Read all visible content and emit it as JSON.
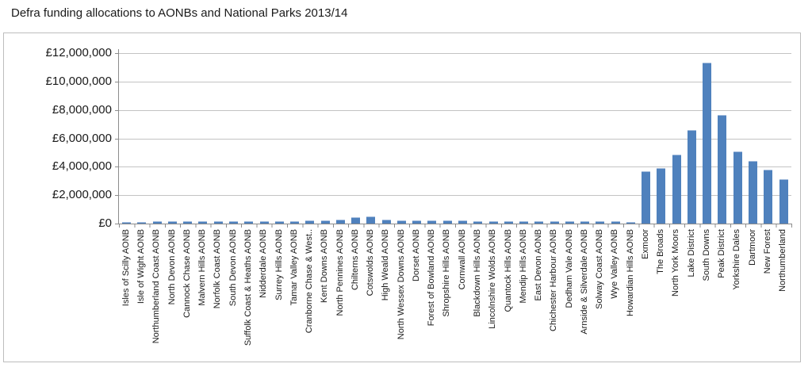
{
  "chart_data": {
    "type": "bar",
    "title": "Defra funding allocations to AONBs and National Parks 2013/14",
    "xlabel": "",
    "ylabel": "",
    "ylim": [
      0,
      12000000
    ],
    "grid": true,
    "legend": "none",
    "bar_color": "#4f81bd",
    "gridline_color": "#c3c3c3",
    "axis_color": "#8c8c8c",
    "currency": "GBP",
    "y_ticks": [
      "£0",
      "£2,000,000",
      "£4,000,000",
      "£6,000,000",
      "£8,000,000",
      "£10,000,000",
      "£12,000,000"
    ],
    "y_tick_values": [
      0,
      2000000,
      4000000,
      6000000,
      8000000,
      10000000,
      12000000
    ],
    "categories": [
      "Isles of Scilly AONB",
      "Isle of Wight AONB",
      "Northumberland Coast AONB",
      "North Devon AONB",
      "Cannock Chase AONB",
      "Malvern Hills AONB",
      "Norfolk Coast AONB",
      "South Devon AONB",
      "Suffolk Coast & Heaths AONB",
      "Nidderdale AONB",
      "Surrey Hills AONB",
      "Tamar Valley AONB",
      "Cranborne Chase & West..",
      "Kent Downs AONB",
      "North Pennines AONB",
      "Chilterns AONB",
      "Cotswolds AONB",
      "High Weald AONB",
      "North Wessex Downs AONB",
      "Dorset AONB",
      "Forest of Bowland AONB",
      "Shropshire Hills AONB",
      "Cornwall AONB",
      "Blackdown Hills AONB",
      "Lincolnshire Wolds AONB",
      "Quantock Hills AONB",
      "Mendip Hills AONB",
      "East Devon AONB",
      "Chichester Harbour AONB",
      "Dedham Vale AONB",
      "Arnside & Silverdale AONB",
      "Solway Coast AONB",
      "Wye Valley AONB",
      "Howardian Hills AONB",
      "Exmoor",
      "The Broads",
      "North York Moors",
      "Lake District",
      "South Downs",
      "Peak District",
      "Yorkshire Dales",
      "Dartmoor",
      "New Forest",
      "Northumberland"
    ],
    "values": [
      100000,
      140000,
      150000,
      150000,
      150000,
      160000,
      170000,
      170000,
      190000,
      170000,
      180000,
      180000,
      230000,
      250000,
      300000,
      420000,
      490000,
      280000,
      240000,
      240000,
      210000,
      210000,
      230000,
      190000,
      180000,
      180000,
      180000,
      190000,
      180000,
      170000,
      160000,
      150000,
      180000,
      110000,
      3700000,
      3930000,
      4860000,
      6560000,
      11350000,
      7660000,
      5080000,
      4430000,
      3800000,
      3100000
    ]
  }
}
